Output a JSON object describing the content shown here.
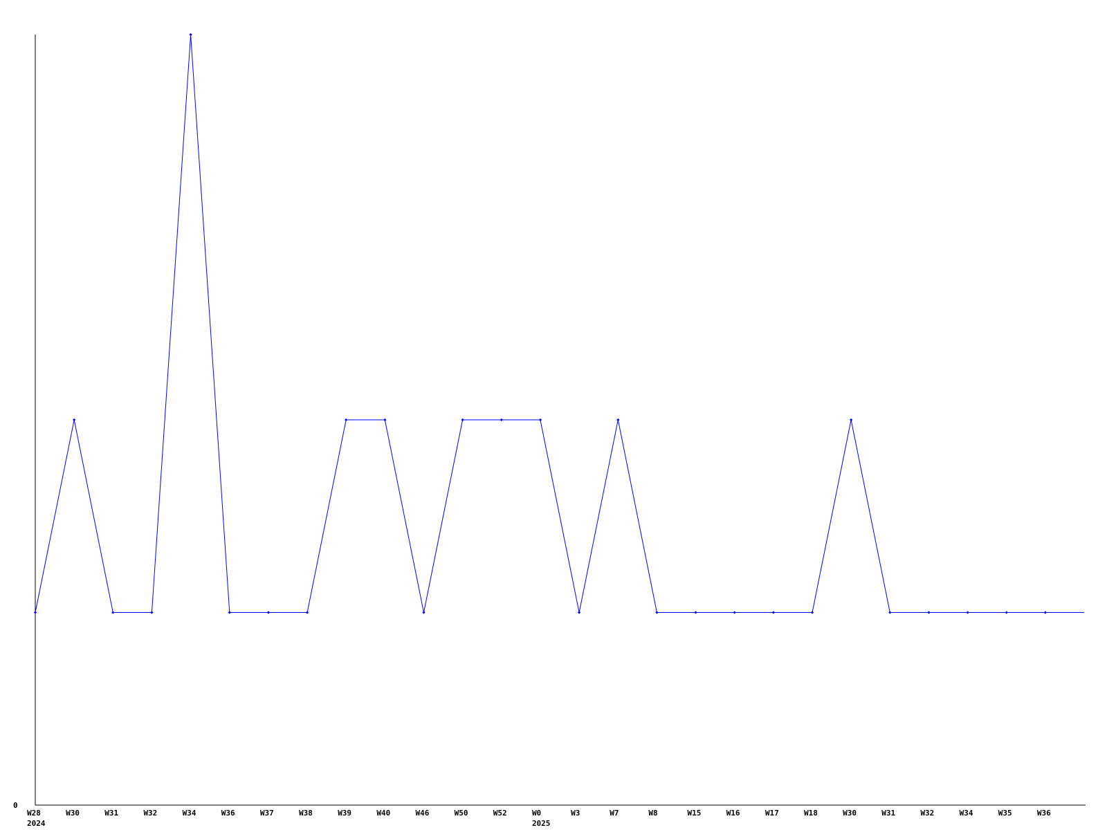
{
  "chart_data": {
    "type": "line",
    "title": "",
    "xlabel": "",
    "ylabel": "",
    "y_tick_labels": [
      "0"
    ],
    "ylim": [
      0,
      4
    ],
    "grid": false,
    "line_color": "#0000ff",
    "categories": [
      "W28",
      "W30",
      "W31",
      "W32",
      "W34",
      "W36",
      "W37",
      "W38",
      "W39",
      "W40",
      "W46",
      "W50",
      "W52",
      "W0",
      "W3",
      "W7",
      "W8",
      "W15",
      "W16",
      "W17",
      "W18",
      "W30",
      "W31",
      "W32",
      "W34",
      "W35",
      "W36"
    ],
    "year_labels": [
      {
        "category_index": 0,
        "label": "2024"
      },
      {
        "category_index": 13,
        "label": "2025"
      }
    ],
    "values": [
      1,
      2,
      1,
      1,
      4,
      1,
      1,
      1,
      2,
      2,
      1,
      2,
      2,
      2,
      1,
      2,
      1,
      1,
      1,
      1,
      1,
      2,
      1,
      1,
      1,
      1,
      1
    ],
    "trailing_value": 1
  }
}
